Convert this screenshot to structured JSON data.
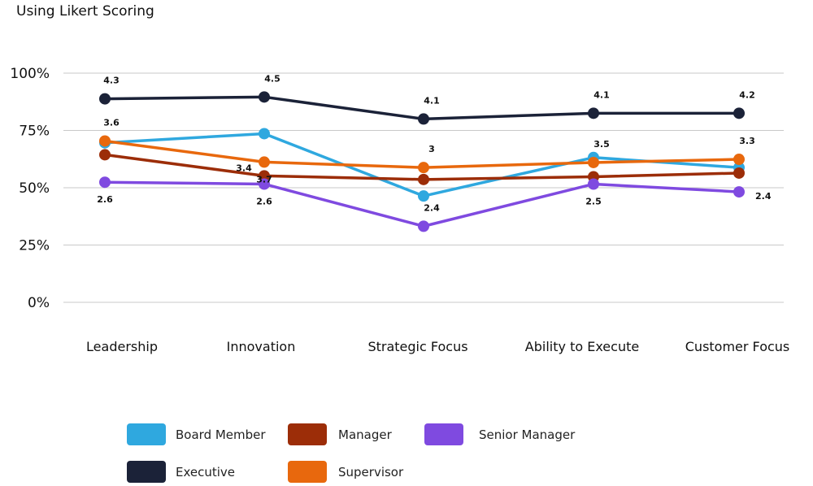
{
  "chart_data": {
    "type": "line",
    "subtitle": "Using Likert Scoring",
    "categories": [
      "Leadership",
      "Innovation",
      "Strategic Focus",
      "Ability to Execute",
      "Customer Focus"
    ],
    "ylim": [
      0,
      100
    ],
    "yticks": [
      0,
      25,
      50,
      75,
      100
    ],
    "ytick_labels": [
      "0%",
      "25%",
      "50%",
      "75%",
      "100%"
    ],
    "grid": true,
    "legend_position": "bottom",
    "series": [
      {
        "name": "Executive",
        "color": "#1b2238",
        "values": [
          88.8,
          89.6,
          80.0,
          82.5,
          82.5
        ],
        "labels": [
          "4.3",
          "4.5",
          "4.1",
          "4.1",
          "4.2"
        ],
        "label_pos": [
          "above",
          "above",
          "above",
          "above",
          "above"
        ]
      },
      {
        "name": "Board Member",
        "color": "#2fa8df",
        "values": [
          69.6,
          73.6,
          46.4,
          63.2,
          58.8
        ],
        "labels": [],
        "label_pos": []
      },
      {
        "name": "Supervisor",
        "color": "#e8680d",
        "values": [
          70.4,
          61.2,
          58.8,
          61.0,
          62.4
        ],
        "labels": [
          "3.6",
          "3.7",
          "3",
          "3.5",
          "3.3"
        ],
        "label_pos": [
          "above",
          "below",
          "above",
          "above",
          "above"
        ]
      },
      {
        "name": "Manager",
        "color": "#9c2d08",
        "values": [
          64.4,
          55.2,
          53.6,
          54.8,
          56.4
        ],
        "labels": [
          "",
          "3.4",
          "",
          "",
          ""
        ],
        "label_pos": [
          "",
          "above-left",
          "",
          "",
          ""
        ]
      },
      {
        "name": "Senior Manager",
        "color": "#7f4ae0",
        "values": [
          52.4,
          51.6,
          33.2,
          51.6,
          48.2
        ],
        "labels": [
          "2.6",
          "2.6",
          "2.4",
          "2.5",
          "2.4"
        ],
        "label_pos": [
          "below",
          "below",
          "above",
          "below",
          "right"
        ]
      }
    ],
    "legend": [
      {
        "name": "Board Member",
        "color": "#2fa8df"
      },
      {
        "name": "Manager",
        "color": "#9c2d08"
      },
      {
        "name": "Senior Manager",
        "color": "#7f4ae0"
      },
      {
        "name": "Executive",
        "color": "#1b2238"
      },
      {
        "name": "Supervisor",
        "color": "#e8680d"
      }
    ]
  }
}
